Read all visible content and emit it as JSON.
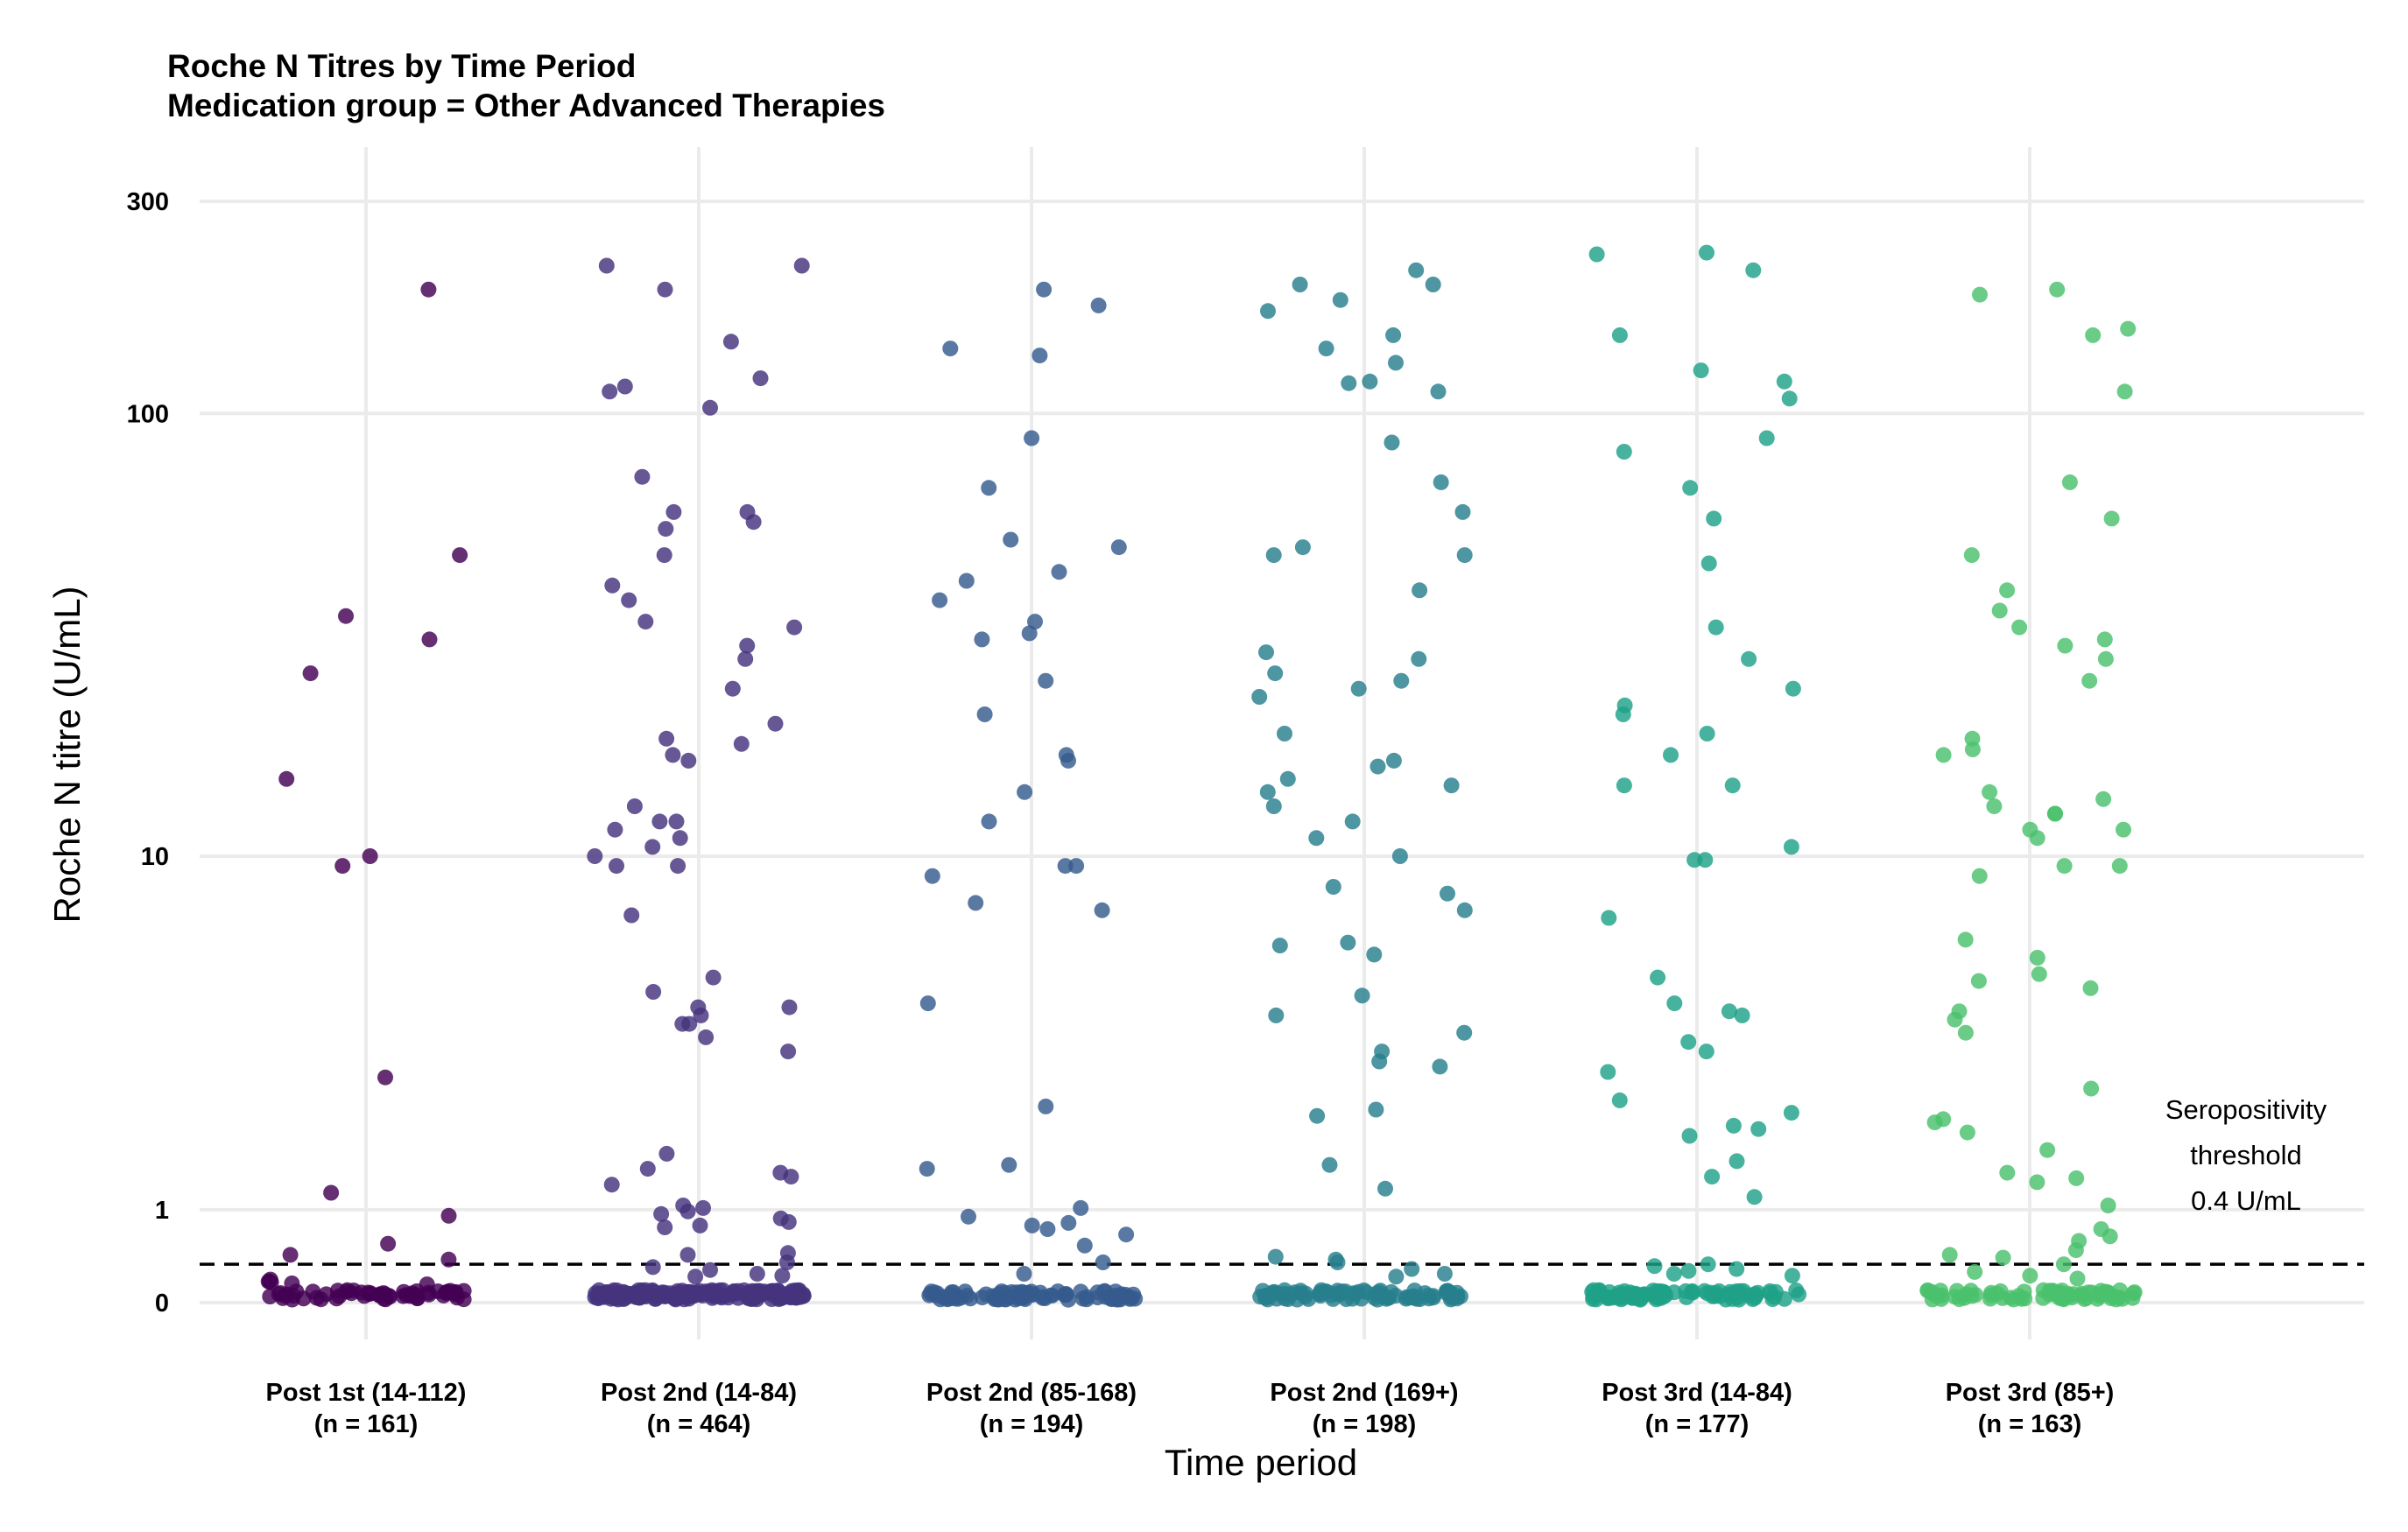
{
  "chart_data": {
    "type": "scatter",
    "title_line1": "Roche N Titres by Time Period",
    "title_line2": "Medication group = Other Advanced Therapies",
    "xlabel": "Time period",
    "ylabel": "Roche N titre (U/mL)",
    "y_scale": "pseudo-log",
    "y_ticks": [
      {
        "value": 0,
        "label": "0"
      },
      {
        "value": 1,
        "label": "1"
      },
      {
        "value": 10,
        "label": "10"
      },
      {
        "value": 100,
        "label": "100"
      },
      {
        "value": 300,
        "label": "300"
      }
    ],
    "threshold": {
      "value": 0.4,
      "line1": "Seropositivity",
      "line2": "threshold",
      "line3": "0.4 U/mL"
    },
    "grid": true,
    "legend": "none",
    "categories": [
      {
        "label": "Post 1st (14-112)",
        "n_label": "(n = 161)",
        "color": "#440154",
        "values": [
          190,
          48,
          35,
          31,
          26,
          15,
          10,
          9.5,
          2.9,
          1.2,
          0.93,
          0.62,
          0.5,
          0.45,
          0.24,
          0.22,
          0.22,
          0.21,
          0.2,
          0.19
        ],
        "low_count": 60
      },
      {
        "label": "Post 2nd (14-84)",
        "n_label": "(n = 464)",
        "color": "#46337e",
        "values": [
          215,
          215,
          190,
          145,
          120,
          115,
          112,
          103,
          72,
          60,
          60,
          57,
          55,
          48,
          41,
          38,
          34,
          33,
          30,
          28,
          24,
          20,
          18.5,
          18,
          17,
          16.5,
          13,
          12,
          12,
          11.5,
          11,
          10.5,
          10,
          9.5,
          9.5,
          7.3,
          5.2,
          4.8,
          4.4,
          4.4,
          4.2,
          4,
          4,
          3.7,
          3.4,
          1.7,
          1.5,
          1.45,
          1.4,
          1.3,
          1.05,
          1.02,
          0.98,
          0.95,
          0.9,
          0.86,
          0.82,
          0.8,
          0.52,
          0.5,
          0.42,
          0.37,
          0.34,
          0.3,
          0.28,
          0.27
        ],
        "low_count": 180
      },
      {
        "label": "Post 2nd (85-168)",
        "n_label": "(n = 194)",
        "color": "#365c8d",
        "values": [
          190,
          175,
          140,
          135,
          88,
          68,
          52,
          50,
          44,
          42,
          38,
          34,
          32,
          31,
          25,
          21,
          17,
          16.5,
          14,
          12,
          9.5,
          9.5,
          9,
          7.8,
          7.5,
          4.5,
          2.4,
          1.55,
          1.5,
          1.02,
          0.92,
          0.85,
          0.82,
          0.78,
          0.72,
          0.6,
          0.42,
          0.3
        ],
        "low_count": 90
      },
      {
        "label": "Post 2nd (169+)",
        "n_label": "(n = 198)",
        "color": "#277f8e",
        "values": [
          210,
          195,
          195,
          180,
          170,
          150,
          140,
          130,
          118,
          117,
          112,
          86,
          70,
          60,
          50,
          48,
          48,
          40,
          29,
          28,
          26,
          25,
          24,
          23,
          19,
          16.5,
          16,
          15,
          14.5,
          14,
          13,
          12,
          11,
          10,
          8.5,
          8.2,
          7.5,
          6.3,
          6.2,
          5.9,
          4.7,
          4.2,
          3.8,
          3.4,
          3.2,
          3.1,
          2.35,
          2.25,
          1.55,
          1.25,
          0.48,
          0.45,
          0.42,
          0.35,
          0.3,
          0.27
        ],
        "low_count": 90
      },
      {
        "label": "Post 3rd (14-84)",
        "n_label": "(n = 177)",
        "color": "#1fa187",
        "values": [
          230,
          228,
          210,
          150,
          125,
          118,
          108,
          88,
          82,
          68,
          58,
          46,
          33,
          28,
          24,
          22,
          21,
          19,
          17,
          14.5,
          14.5,
          10.5,
          9.8,
          9.8,
          7.2,
          5.2,
          4.5,
          4.3,
          4.2,
          3.6,
          3.4,
          3,
          2.5,
          2.3,
          2.1,
          2.05,
          1.95,
          1.6,
          1.4,
          1.15,
          0.4,
          0.38,
          0.35,
          0.33,
          0.3,
          0.28
        ],
        "low_count": 85
      },
      {
        "label": "Post 3rd (85+)",
        "n_label": "(n = 163)",
        "color": "#4ac16d",
        "values": [
          190,
          185,
          155,
          150,
          112,
          70,
          58,
          48,
          40,
          36,
          33,
          31,
          30,
          28,
          25,
          18.5,
          17.5,
          17,
          14,
          13.5,
          13,
          12.5,
          12.5,
          11.5,
          11.5,
          11,
          9.5,
          9.5,
          9,
          6.4,
          5.8,
          5.3,
          5.1,
          4.9,
          4.3,
          4.1,
          3.8,
          2.7,
          2.2,
          2.15,
          2.0,
          1.75,
          1.45,
          1.38,
          1.33,
          1.05,
          0.78,
          0.7,
          0.65,
          0.55,
          0.5,
          0.47,
          0.4,
          0.32,
          0.28,
          0.25
        ],
        "low_count": 75
      }
    ]
  }
}
